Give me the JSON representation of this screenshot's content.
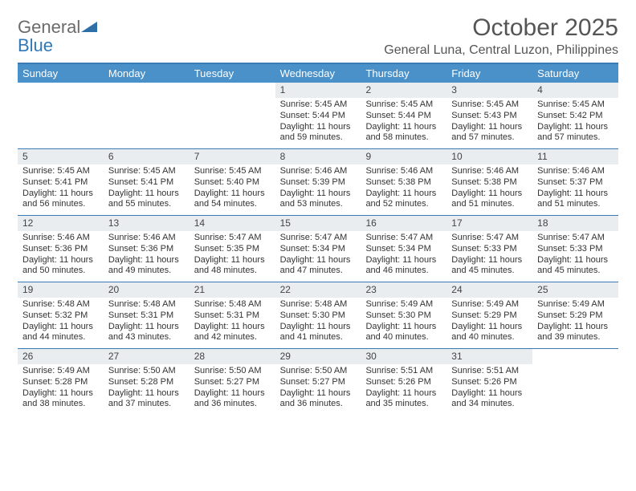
{
  "brand": {
    "word1": "General",
    "word2": "Blue"
  },
  "title": "October 2025",
  "location": "General Luna, Central Luzon, Philippines",
  "colors": {
    "header_bg": "#4a90c9",
    "header_border": "#3a7bb5",
    "daynum_bg": "#e9edf0",
    "text": "#333333",
    "brand_gray": "#6b6b6b",
    "brand_blue": "#3178b9"
  },
  "day_headers": [
    "Sunday",
    "Monday",
    "Tuesday",
    "Wednesday",
    "Thursday",
    "Friday",
    "Saturday"
  ],
  "weeks": [
    [
      {
        "n": "",
        "sunrise": "",
        "sunset": "",
        "daylight": ""
      },
      {
        "n": "",
        "sunrise": "",
        "sunset": "",
        "daylight": ""
      },
      {
        "n": "",
        "sunrise": "",
        "sunset": "",
        "daylight": ""
      },
      {
        "n": "1",
        "sunrise": "Sunrise: 5:45 AM",
        "sunset": "Sunset: 5:44 PM",
        "daylight": "Daylight: 11 hours and 59 minutes."
      },
      {
        "n": "2",
        "sunrise": "Sunrise: 5:45 AM",
        "sunset": "Sunset: 5:44 PM",
        "daylight": "Daylight: 11 hours and 58 minutes."
      },
      {
        "n": "3",
        "sunrise": "Sunrise: 5:45 AM",
        "sunset": "Sunset: 5:43 PM",
        "daylight": "Daylight: 11 hours and 57 minutes."
      },
      {
        "n": "4",
        "sunrise": "Sunrise: 5:45 AM",
        "sunset": "Sunset: 5:42 PM",
        "daylight": "Daylight: 11 hours and 57 minutes."
      }
    ],
    [
      {
        "n": "5",
        "sunrise": "Sunrise: 5:45 AM",
        "sunset": "Sunset: 5:41 PM",
        "daylight": "Daylight: 11 hours and 56 minutes."
      },
      {
        "n": "6",
        "sunrise": "Sunrise: 5:45 AM",
        "sunset": "Sunset: 5:41 PM",
        "daylight": "Daylight: 11 hours and 55 minutes."
      },
      {
        "n": "7",
        "sunrise": "Sunrise: 5:45 AM",
        "sunset": "Sunset: 5:40 PM",
        "daylight": "Daylight: 11 hours and 54 minutes."
      },
      {
        "n": "8",
        "sunrise": "Sunrise: 5:46 AM",
        "sunset": "Sunset: 5:39 PM",
        "daylight": "Daylight: 11 hours and 53 minutes."
      },
      {
        "n": "9",
        "sunrise": "Sunrise: 5:46 AM",
        "sunset": "Sunset: 5:38 PM",
        "daylight": "Daylight: 11 hours and 52 minutes."
      },
      {
        "n": "10",
        "sunrise": "Sunrise: 5:46 AM",
        "sunset": "Sunset: 5:38 PM",
        "daylight": "Daylight: 11 hours and 51 minutes."
      },
      {
        "n": "11",
        "sunrise": "Sunrise: 5:46 AM",
        "sunset": "Sunset: 5:37 PM",
        "daylight": "Daylight: 11 hours and 51 minutes."
      }
    ],
    [
      {
        "n": "12",
        "sunrise": "Sunrise: 5:46 AM",
        "sunset": "Sunset: 5:36 PM",
        "daylight": "Daylight: 11 hours and 50 minutes."
      },
      {
        "n": "13",
        "sunrise": "Sunrise: 5:46 AM",
        "sunset": "Sunset: 5:36 PM",
        "daylight": "Daylight: 11 hours and 49 minutes."
      },
      {
        "n": "14",
        "sunrise": "Sunrise: 5:47 AM",
        "sunset": "Sunset: 5:35 PM",
        "daylight": "Daylight: 11 hours and 48 minutes."
      },
      {
        "n": "15",
        "sunrise": "Sunrise: 5:47 AM",
        "sunset": "Sunset: 5:34 PM",
        "daylight": "Daylight: 11 hours and 47 minutes."
      },
      {
        "n": "16",
        "sunrise": "Sunrise: 5:47 AM",
        "sunset": "Sunset: 5:34 PM",
        "daylight": "Daylight: 11 hours and 46 minutes."
      },
      {
        "n": "17",
        "sunrise": "Sunrise: 5:47 AM",
        "sunset": "Sunset: 5:33 PM",
        "daylight": "Daylight: 11 hours and 45 minutes."
      },
      {
        "n": "18",
        "sunrise": "Sunrise: 5:47 AM",
        "sunset": "Sunset: 5:33 PM",
        "daylight": "Daylight: 11 hours and 45 minutes."
      }
    ],
    [
      {
        "n": "19",
        "sunrise": "Sunrise: 5:48 AM",
        "sunset": "Sunset: 5:32 PM",
        "daylight": "Daylight: 11 hours and 44 minutes."
      },
      {
        "n": "20",
        "sunrise": "Sunrise: 5:48 AM",
        "sunset": "Sunset: 5:31 PM",
        "daylight": "Daylight: 11 hours and 43 minutes."
      },
      {
        "n": "21",
        "sunrise": "Sunrise: 5:48 AM",
        "sunset": "Sunset: 5:31 PM",
        "daylight": "Daylight: 11 hours and 42 minutes."
      },
      {
        "n": "22",
        "sunrise": "Sunrise: 5:48 AM",
        "sunset": "Sunset: 5:30 PM",
        "daylight": "Daylight: 11 hours and 41 minutes."
      },
      {
        "n": "23",
        "sunrise": "Sunrise: 5:49 AM",
        "sunset": "Sunset: 5:30 PM",
        "daylight": "Daylight: 11 hours and 40 minutes."
      },
      {
        "n": "24",
        "sunrise": "Sunrise: 5:49 AM",
        "sunset": "Sunset: 5:29 PM",
        "daylight": "Daylight: 11 hours and 40 minutes."
      },
      {
        "n": "25",
        "sunrise": "Sunrise: 5:49 AM",
        "sunset": "Sunset: 5:29 PM",
        "daylight": "Daylight: 11 hours and 39 minutes."
      }
    ],
    [
      {
        "n": "26",
        "sunrise": "Sunrise: 5:49 AM",
        "sunset": "Sunset: 5:28 PM",
        "daylight": "Daylight: 11 hours and 38 minutes."
      },
      {
        "n": "27",
        "sunrise": "Sunrise: 5:50 AM",
        "sunset": "Sunset: 5:28 PM",
        "daylight": "Daylight: 11 hours and 37 minutes."
      },
      {
        "n": "28",
        "sunrise": "Sunrise: 5:50 AM",
        "sunset": "Sunset: 5:27 PM",
        "daylight": "Daylight: 11 hours and 36 minutes."
      },
      {
        "n": "29",
        "sunrise": "Sunrise: 5:50 AM",
        "sunset": "Sunset: 5:27 PM",
        "daylight": "Daylight: 11 hours and 36 minutes."
      },
      {
        "n": "30",
        "sunrise": "Sunrise: 5:51 AM",
        "sunset": "Sunset: 5:26 PM",
        "daylight": "Daylight: 11 hours and 35 minutes."
      },
      {
        "n": "31",
        "sunrise": "Sunrise: 5:51 AM",
        "sunset": "Sunset: 5:26 PM",
        "daylight": "Daylight: 11 hours and 34 minutes."
      },
      {
        "n": "",
        "sunrise": "",
        "sunset": "",
        "daylight": ""
      }
    ]
  ]
}
